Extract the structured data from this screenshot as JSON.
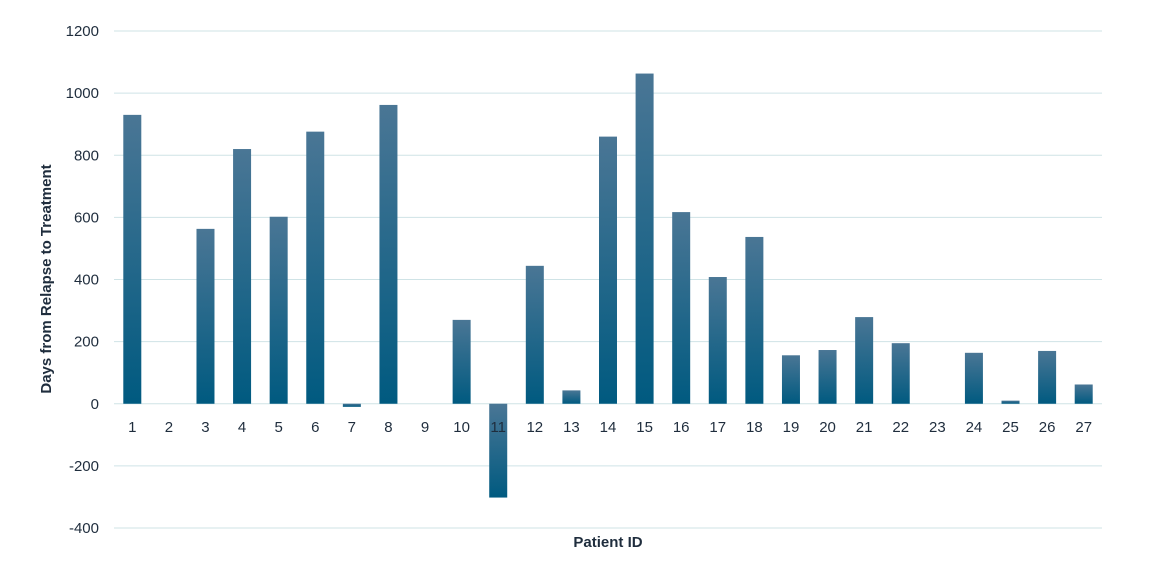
{
  "chart_data": {
    "type": "bar",
    "title": "",
    "xlabel": "Patient ID",
    "ylabel": "Days from Relapse to Treatment",
    "ylim": [
      -400,
      1200
    ],
    "yticks": [
      1200,
      1000,
      800,
      600,
      400,
      200,
      0,
      -200,
      -400
    ],
    "grid": true,
    "categories": [
      "1",
      "2",
      "3",
      "4",
      "5",
      "6",
      "7",
      "8",
      "9",
      "10",
      "11",
      "12",
      "13",
      "14",
      "15",
      "16",
      "17",
      "18",
      "19",
      "20",
      "21",
      "22",
      "23",
      "24",
      "25",
      "26",
      "27"
    ],
    "values": [
      930,
      0,
      563,
      820,
      602,
      876,
      -10,
      962,
      0,
      270,
      -302,
      444,
      43,
      860,
      1063,
      617,
      408,
      537,
      156,
      173,
      279,
      195,
      0,
      164,
      10,
      170,
      62
    ],
    "colors": {
      "bar_top": "#4a7695",
      "bar_bottom": "#005a80",
      "grid": "#cfe3e6",
      "text": "#1f2d3d"
    }
  }
}
